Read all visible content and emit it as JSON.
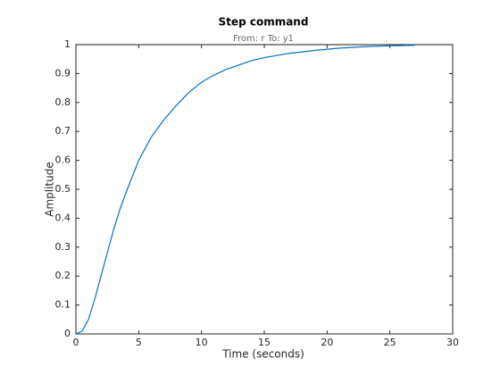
{
  "chart_data": {
    "type": "line",
    "title": "Step command",
    "subtitle": "From: r  To: y1",
    "xlabel": "Time (seconds)",
    "ylabel": "Amplitude",
    "x": [
      0,
      0.5,
      1,
      1.5,
      2,
      2.5,
      3,
      3.5,
      4,
      5,
      6,
      7,
      8,
      9,
      10,
      11,
      12,
      13,
      14,
      15,
      17,
      19,
      21,
      23,
      25,
      27
    ],
    "series": [
      {
        "name": "y1",
        "color": "#0072bd",
        "values": [
          0,
          0.01,
          0.05,
          0.12,
          0.2,
          0.28,
          0.36,
          0.43,
          0.49,
          0.6,
          0.68,
          0.74,
          0.79,
          0.835,
          0.87,
          0.895,
          0.915,
          0.93,
          0.945,
          0.955,
          0.97,
          0.98,
          0.988,
          0.993,
          0.996,
          0.998
        ]
      }
    ],
    "reference_line": 1,
    "xlim": [
      0,
      30
    ],
    "xticks": [
      0,
      5,
      10,
      15,
      20,
      25,
      30
    ],
    "ylim": [
      0,
      1
    ],
    "yticks": [
      0,
      0.1,
      0.2,
      0.3,
      0.4,
      0.5,
      0.6,
      0.7,
      0.8,
      0.9,
      1
    ]
  }
}
